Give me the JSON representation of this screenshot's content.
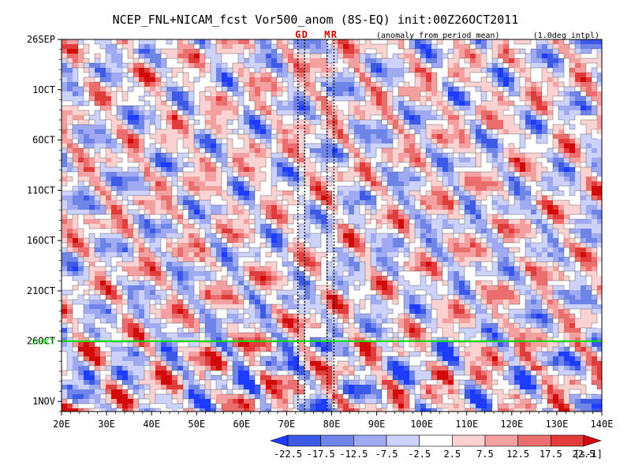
{
  "chart_data": {
    "type": "heatmap",
    "title": "NCEP_FNL+NICAM_fcst Vor500_anom (8S-EQ) init:00Z26OCT2011",
    "subtitle_left": "(anomaly from period mean)",
    "subtitle_right": "(1.0deg intpl)",
    "x_tick_labels": [
      "20E",
      "30E",
      "40E",
      "50E",
      "60E",
      "70E",
      "80E",
      "90E",
      "100E",
      "110E",
      "120E",
      "130E",
      "140E"
    ],
    "x_ticks": [
      20,
      30,
      40,
      50,
      60,
      70,
      80,
      90,
      100,
      110,
      120,
      130,
      140
    ],
    "xlim": [
      20,
      140
    ],
    "y_tick_labels": [
      "26SEP",
      "1OCT",
      "6OCT",
      "11OCT",
      "16OCT",
      "21OCT",
      "26OCT",
      "1NOV"
    ],
    "y_ticks_day": [
      0,
      5,
      10,
      15,
      20,
      25,
      30,
      36
    ],
    "ylim_day": [
      0,
      37
    ],
    "init_line_day": 30,
    "init_line_label": "26OCT",
    "init_line_color": "#00dd00",
    "markers": [
      {
        "label": "G",
        "lon": 72.5
      },
      {
        "label": "D",
        "lon": 74
      },
      {
        "label": "M",
        "lon": 79
      },
      {
        "label": "R",
        "lon": 80.5
      }
    ],
    "marker_color": "#d00000",
    "colorbar": {
      "levels": [
        "-22.5",
        "-17.5",
        "-12.5",
        "-7.5",
        "-2.5",
        "2.5",
        "7.5",
        "12.5",
        "17.5",
        "22.5"
      ],
      "unit": "[s-1]",
      "colors": [
        "#1e3cff",
        "#3c5ae6",
        "#6e84e6",
        "#a0aaf0",
        "#cdd2fa",
        "#ffffff",
        "#fad2d2",
        "#f5a0a0",
        "#eb6e6e",
        "#e13c3c",
        "#d20a0a"
      ]
    }
  }
}
